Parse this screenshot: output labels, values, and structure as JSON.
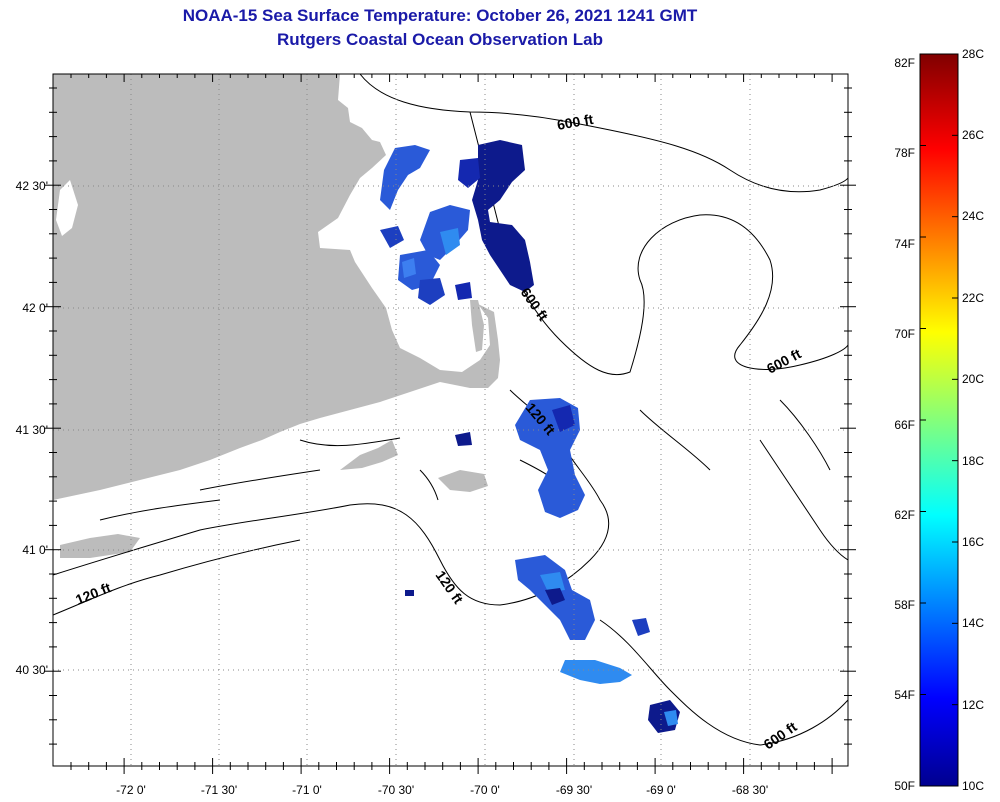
{
  "header": {
    "title": "NOAA-15 Sea Surface Temperature:  October 26, 2021 1241 GMT",
    "subtitle": "Rutgers Coastal Ocean Observation Lab"
  },
  "map": {
    "lat_labels": [
      "42 30'",
      "42 0'",
      "41 30'",
      "41 0'",
      "40 30'"
    ],
    "lon_labels": [
      "-72 0'",
      "-71 30'",
      "-71 0'",
      "-70 30'",
      "-70 0'",
      "-69 30'",
      "-69 0'",
      "-68 30'"
    ],
    "depth_labels": [
      "600 ft",
      "600 ft",
      "600 ft",
      "600 ft",
      "120 ft",
      "120 ft",
      "120 ft"
    ],
    "colors": {
      "land": "#bcbcbc",
      "contour": "#000000",
      "cold": "#0d1a8c",
      "mid": "#2a5ad8",
      "warm": "#2f8bf0"
    }
  },
  "colorbar": {
    "fahrenheit_labels": [
      "82F",
      "78F",
      "74F",
      "70F",
      "66F",
      "62F",
      "58F",
      "54F",
      "50F"
    ],
    "celsius_labels": [
      "28C",
      "26C",
      "24C",
      "22C",
      "20C",
      "18C",
      "16C",
      "14C",
      "12C",
      "10C"
    ],
    "range_c": [
      10,
      28
    ],
    "range_f": [
      50,
      82
    ]
  }
}
